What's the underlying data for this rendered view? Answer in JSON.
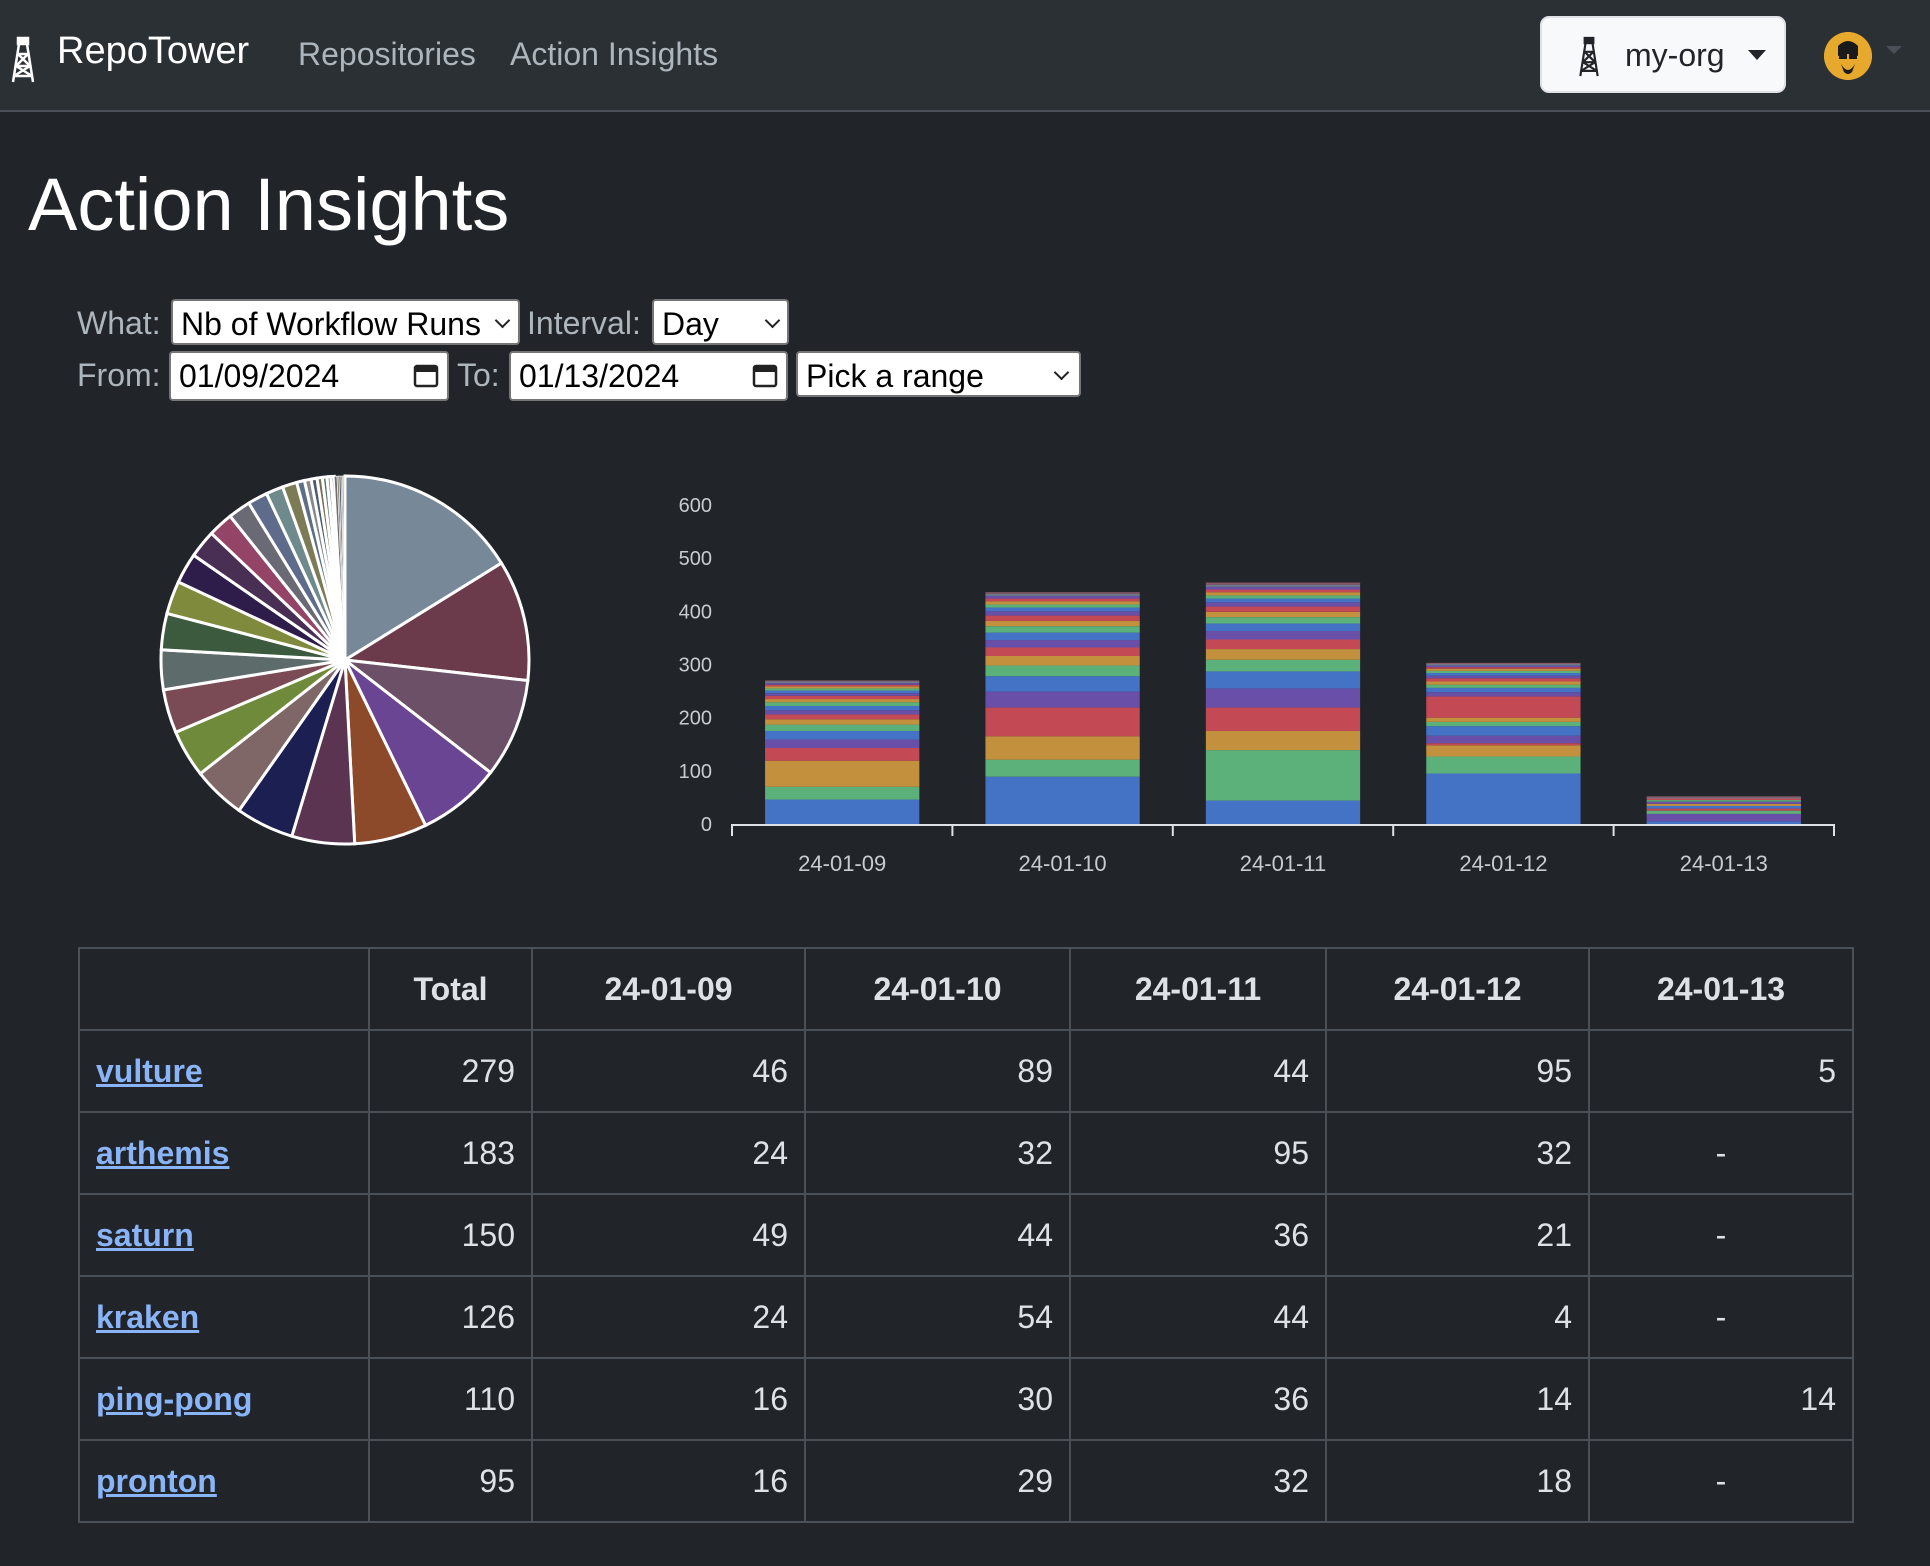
{
  "navbar": {
    "brand": "RepoTower",
    "links": [
      "Repositories",
      "Action Insights"
    ],
    "org": "my-org"
  },
  "page": {
    "title": "Action Insights"
  },
  "filters": {
    "what_label": "What:",
    "what_value": "Nb of Workflow Runs",
    "interval_label": "Interval:",
    "interval_value": "Day",
    "from_label": "From:",
    "from_value": "01/09/2024",
    "to_label": "To:",
    "to_value": "01/13/2024",
    "range_value": "Pick a range"
  },
  "chart_data": [
    {
      "type": "pie",
      "slices": [
        279,
        183,
        150,
        126,
        110,
        95,
        88,
        80,
        72,
        66,
        60,
        55,
        50,
        46,
        42,
        38,
        34,
        30,
        26,
        22,
        12,
        10,
        9,
        8,
        7,
        6,
        5,
        4,
        3,
        3,
        2,
        2,
        1,
        1
      ],
      "colors": [
        "#778899",
        "#6b3a4b",
        "#6b5068",
        "#6a4593",
        "#8c4a2b",
        "#5a3450",
        "#1c1f52",
        "#7f6768",
        "#6f8a3b",
        "#7a4b55",
        "#5d6b6b",
        "#3c5a3d",
        "#808a3c",
        "#2e1d4a",
        "#4a2f55",
        "#944466",
        "#6a6a75",
        "#5e6b8a",
        "#6f8a8c",
        "#7b7b55",
        "#5c6f87",
        "#86868c",
        "#4b5c6d",
        "#7d6d55",
        "#557a6b",
        "#8a8a9a",
        "#64748b",
        "#6e6e6e",
        "#9a8a7a",
        "#5a6a7a",
        "#7a7a8a",
        "#8a7a6a",
        "#6a7a6a",
        "#7a6a7a"
      ]
    },
    {
      "type": "bar",
      "stacked": true,
      "categories": [
        "24-01-09",
        "24-01-10",
        "24-01-11",
        "24-01-12",
        "24-01-13"
      ],
      "ylim": [
        0,
        600
      ],
      "yticks": [
        0,
        100,
        200,
        300,
        400,
        500,
        600
      ],
      "series": [
        {
          "color": "#4472c4",
          "values": [
            46,
            89,
            44,
            95,
            5
          ]
        },
        {
          "color": "#5cb07a",
          "values": [
            24,
            32,
            95,
            32,
            0
          ]
        },
        {
          "color": "#c3913e",
          "values": [
            49,
            44,
            36,
            21,
            0
          ]
        },
        {
          "color": "#c34a55",
          "values": [
            24,
            54,
            44,
            4,
            0
          ]
        },
        {
          "color": "#6a4fa8",
          "values": [
            16,
            30,
            36,
            14,
            14
          ]
        },
        {
          "color": "#4472c4",
          "values": [
            16,
            29,
            32,
            18,
            0
          ]
        },
        {
          "color": "#5cb07a",
          "values": [
            12,
            20,
            22,
            8,
            6
          ]
        },
        {
          "color": "#c3913e",
          "values": [
            10,
            18,
            20,
            8,
            0
          ]
        },
        {
          "color": "#c34a55",
          "values": [
            9,
            16,
            18,
            40,
            4
          ]
        },
        {
          "color": "#6a4fa8",
          "values": [
            8,
            14,
            16,
            8,
            0
          ]
        },
        {
          "color": "#4472c4",
          "values": [
            8,
            14,
            14,
            8,
            5
          ]
        },
        {
          "color": "#5cb07a",
          "values": [
            7,
            12,
            12,
            6,
            0
          ]
        },
        {
          "color": "#c3913e",
          "values": [
            6,
            10,
            10,
            6,
            4
          ]
        },
        {
          "color": "#c34a55",
          "values": [
            6,
            10,
            10,
            6,
            0
          ]
        },
        {
          "color": "#6a4fa8",
          "values": [
            5,
            8,
            8,
            5,
            4
          ]
        },
        {
          "color": "#4472c4",
          "values": [
            5,
            7,
            7,
            5,
            0
          ]
        },
        {
          "color": "#5cb07a",
          "values": [
            4,
            6,
            6,
            4,
            3
          ]
        },
        {
          "color": "#c3913e",
          "values": [
            4,
            6,
            6,
            4,
            0
          ]
        },
        {
          "color": "#c34a55",
          "values": [
            3,
            5,
            5,
            3,
            3
          ]
        },
        {
          "color": "#6a4fa8",
          "values": [
            3,
            5,
            5,
            3,
            0
          ]
        },
        {
          "color": "#6b7a8a",
          "values": [
            3,
            4,
            4,
            3,
            2
          ]
        },
        {
          "color": "#8a5a6a",
          "values": [
            2,
            3,
            4,
            2,
            2
          ]
        }
      ]
    }
  ],
  "table": {
    "headers": [
      "",
      "Total",
      "24-01-09",
      "24-01-10",
      "24-01-11",
      "24-01-12",
      "24-01-13"
    ],
    "rows": [
      {
        "name": "vulture",
        "values": [
          "279",
          "46",
          "89",
          "44",
          "95",
          "5"
        ]
      },
      {
        "name": "arthemis",
        "values": [
          "183",
          "24",
          "32",
          "95",
          "32",
          "-"
        ]
      },
      {
        "name": "saturn",
        "values": [
          "150",
          "49",
          "44",
          "36",
          "21",
          "-"
        ]
      },
      {
        "name": "kraken",
        "values": [
          "126",
          "24",
          "54",
          "44",
          "4",
          "-"
        ]
      },
      {
        "name": "ping-pong",
        "values": [
          "110",
          "16",
          "30",
          "36",
          "14",
          "14"
        ]
      },
      {
        "name": "pronton",
        "values": [
          "95",
          "16",
          "29",
          "32",
          "18",
          "-"
        ]
      }
    ]
  }
}
